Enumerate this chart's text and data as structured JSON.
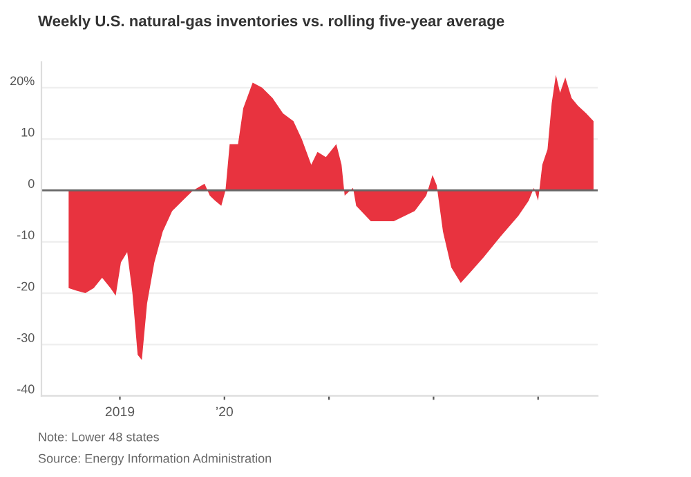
{
  "chart_data": {
    "type": "area",
    "title": "Weekly U.S. natural-gas inventories vs. rolling five-year average",
    "x": [
      2018.51,
      2018.58,
      2018.67,
      2018.75,
      2018.83,
      2018.91,
      2018.96,
      2019.01,
      2019.07,
      2019.12,
      2019.17,
      2019.21,
      2019.26,
      2019.33,
      2019.41,
      2019.5,
      2019.6,
      2019.7,
      2019.81,
      2019.86,
      2019.91,
      2019.97,
      2020.01,
      2020.05,
      2020.13,
      2020.18,
      2020.27,
      2020.36,
      2020.46,
      2020.56,
      2020.66,
      2020.74,
      2020.83,
      2020.89,
      2020.97,
      2021.07,
      2021.12,
      2021.15,
      2021.23,
      2021.26,
      2021.4,
      2021.62,
      2021.82,
      2021.93,
      2021.99,
      2022.03,
      2022.09,
      2022.17,
      2022.26,
      2022.35,
      2022.48,
      2022.64,
      2022.81,
      2022.91,
      2022.96,
      2023.0,
      2023.04,
      2023.09,
      2023.13,
      2023.17,
      2023.21,
      2023.26,
      2023.32,
      2023.38,
      2023.46,
      2023.53
    ],
    "series": [
      {
        "color": "#e8333f",
        "values": [
          -19,
          -19.5,
          -20,
          -19,
          -17,
          -19,
          -20.5,
          -14,
          -12,
          -20,
          -32,
          -33,
          -22,
          -14,
          -8,
          -4,
          -2,
          0,
          1.3,
          -1,
          -2,
          -3,
          0,
          9,
          9,
          16,
          21,
          20,
          18,
          15,
          13.5,
          10,
          5,
          7.5,
          6.5,
          9,
          5,
          -1,
          0.5,
          -3,
          -6,
          -6,
          -4,
          -1,
          3,
          1,
          -8,
          -15,
          -18,
          -16,
          -13,
          -9,
          -5,
          -2,
          0.5,
          -2,
          5,
          8,
          17,
          22.5,
          19,
          22,
          18,
          16.5,
          15,
          13.5
        ]
      }
    ],
    "xlim": [
      2018.25,
      2023.57
    ],
    "xticks": [
      {
        "value": 2019,
        "label": "2019"
      },
      {
        "value": 2020,
        "label": "’20"
      },
      {
        "value": 2021,
        "label": null
      },
      {
        "value": 2022,
        "label": null
      },
      {
        "value": 2023,
        "label": null
      }
    ],
    "ylim": [
      -40,
      25
    ],
    "yticks": [
      {
        "value": 20,
        "label": "20%"
      },
      10,
      0,
      -10,
      -20,
      -30,
      -40
    ],
    "grid": "y",
    "ref_lines": [
      {
        "axis": "y",
        "value": 0,
        "label": null,
        "color": "#666666"
      }
    ],
    "annotations": [
      "Note: Lower 48 states",
      "Source: Energy Information Administration"
    ]
  }
}
